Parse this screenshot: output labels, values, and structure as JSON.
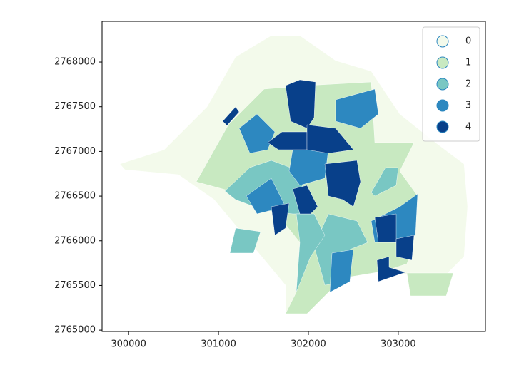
{
  "chart_data": {
    "type": "choropleth",
    "xlim": [
      299705,
      303970
    ],
    "ylim": [
      2764985,
      2768455
    ],
    "xticks": [
      300000,
      301000,
      302000,
      303000
    ],
    "yticks": [
      2765000,
      2765500,
      2766000,
      2766500,
      2767000,
      2767500,
      2768000
    ],
    "legend": [
      0,
      1,
      2,
      3,
      4
    ],
    "colors": [
      "#f3faeb",
      "#c8e9c1",
      "#79c7c3",
      "#2d88c0",
      "#08408a"
    ],
    "legend_corner": "upper right",
    "values": [
      0,
      1,
      1,
      2,
      2,
      2,
      2,
      2,
      3,
      3,
      3,
      3,
      3,
      3,
      4,
      4,
      4,
      4,
      4,
      4,
      4,
      4,
      4,
      4
    ]
  }
}
